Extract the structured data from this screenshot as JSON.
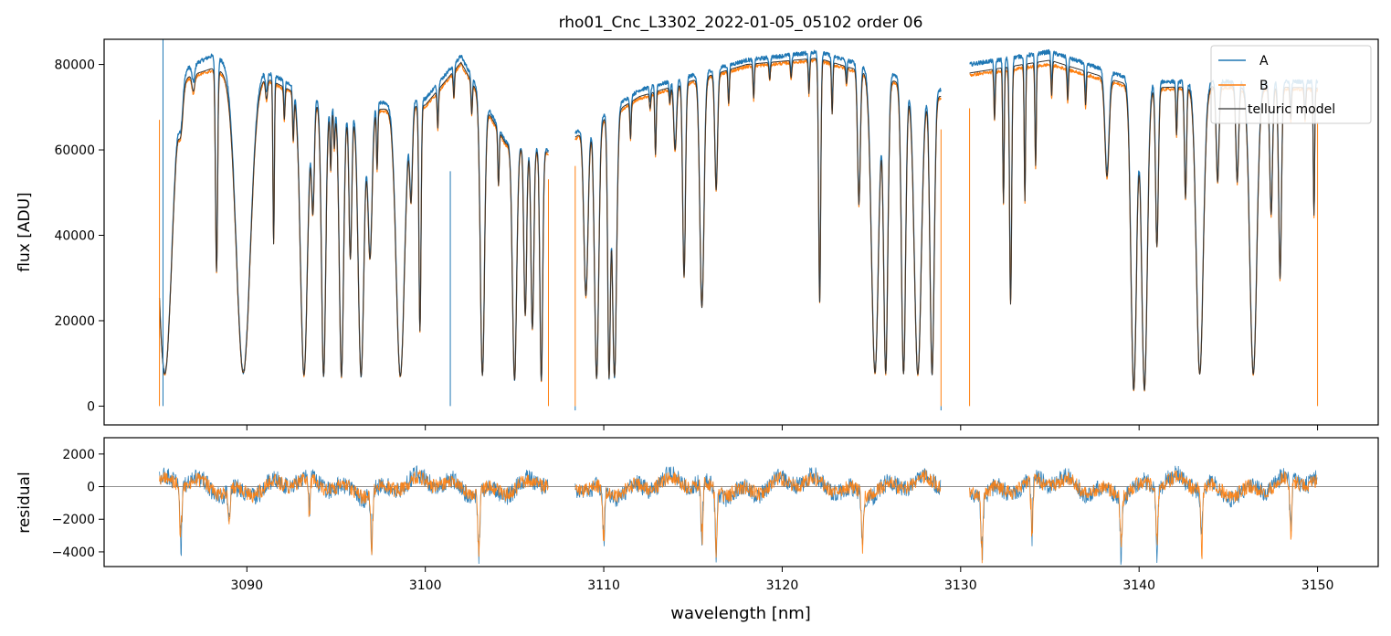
{
  "colors": {
    "A": "#1f77b4",
    "B": "#ff7f0e",
    "model": "#333333",
    "zero_line": "#808080"
  },
  "chart_data": [
    {
      "type": "line",
      "title": "rho01_Cnc_L3302_2022-01-05_05102  order 06",
      "xlabel": "",
      "ylabel": "flux [ADU]",
      "xlim": [
        3082,
        3153.4
      ],
      "ylim": [
        -4400,
        85900
      ],
      "xticks": [
        3090,
        3100,
        3110,
        3120,
        3130,
        3140,
        3150
      ],
      "yticks": [
        0,
        20000,
        40000,
        60000,
        80000
      ],
      "ytick_labels": [
        "0",
        "20000",
        "40000",
        "60000",
        "80000"
      ],
      "grid": false,
      "legend_position": "top-right",
      "legend": [
        "A",
        "B",
        "telluric model"
      ],
      "segments": [
        [
          3085.1,
          3106.9
        ],
        [
          3108.4,
          3128.9
        ],
        [
          3130.5,
          3150.0
        ]
      ],
      "continuum": {
        "A": [
          [
            3085.1,
            76000
          ],
          [
            3088,
            82000
          ],
          [
            3091,
            78500
          ],
          [
            3095,
            70000
          ],
          [
            3100,
            72000
          ],
          [
            3102,
            82000
          ],
          [
            3104.5,
            62000
          ],
          [
            3106.9,
            60000
          ],
          [
            3108.4,
            64000
          ],
          [
            3112,
            74000
          ],
          [
            3118,
            81000
          ],
          [
            3122,
            83000
          ],
          [
            3126,
            78000
          ],
          [
            3128.9,
            74000
          ],
          [
            3130.5,
            80000
          ],
          [
            3135,
            83000
          ],
          [
            3140,
            76000
          ],
          [
            3145,
            76000
          ],
          [
            3150,
            76000
          ]
        ],
        "B": [
          [
            3085.1,
            74500
          ],
          [
            3088,
            78500
          ],
          [
            3091,
            76500
          ],
          [
            3095,
            68000
          ],
          [
            3100,
            70000
          ],
          [
            3102,
            80000
          ],
          [
            3104.5,
            61000
          ],
          [
            3106.9,
            59000
          ],
          [
            3108.4,
            62500
          ],
          [
            3112,
            72000
          ],
          [
            3118,
            79500
          ],
          [
            3122,
            81000
          ],
          [
            3126,
            76000
          ],
          [
            3128.9,
            72000
          ],
          [
            3130.5,
            77500
          ],
          [
            3135,
            80000
          ],
          [
            3140,
            74000
          ],
          [
            3145,
            74500
          ],
          [
            3150,
            74000
          ]
        ],
        "model": [
          [
            3085.1,
            75000
          ],
          [
            3088,
            79000
          ],
          [
            3091,
            77000
          ],
          [
            3095,
            68500
          ],
          [
            3100,
            70500
          ],
          [
            3102,
            80500
          ],
          [
            3104.5,
            61500
          ],
          [
            3106.9,
            59500
          ],
          [
            3108.4,
            63000
          ],
          [
            3112,
            72500
          ],
          [
            3118,
            80000
          ],
          [
            3122,
            81500
          ],
          [
            3126,
            76500
          ],
          [
            3128.9,
            72500
          ],
          [
            3130.5,
            78000
          ],
          [
            3135,
            81000
          ],
          [
            3140,
            74500
          ],
          [
            3145,
            75000
          ],
          [
            3150,
            74500
          ]
        ]
      },
      "absorption_lines": [
        [
          3085.4,
          0.9,
          1.0
        ],
        [
          3086.3,
          0.12,
          0.3
        ],
        [
          3087.0,
          0.05,
          0.2
        ],
        [
          3088.3,
          0.6,
          0.15
        ],
        [
          3089.8,
          0.9,
          1.0
        ],
        [
          3091.1,
          0.06,
          0.15
        ],
        [
          3091.5,
          0.5,
          0.1
        ],
        [
          3092.1,
          0.1,
          0.1
        ],
        [
          3092.6,
          0.15,
          0.1
        ],
        [
          3093.2,
          0.9,
          0.5
        ],
        [
          3093.7,
          0.35,
          0.2
        ],
        [
          3094.3,
          0.9,
          0.3
        ],
        [
          3094.7,
          0.2,
          0.1
        ],
        [
          3094.9,
          0.12,
          0.1
        ],
        [
          3095.3,
          0.9,
          0.3
        ],
        [
          3095.8,
          0.5,
          0.2
        ],
        [
          3096.4,
          0.9,
          0.4
        ],
        [
          3096.9,
          0.5,
          0.3
        ],
        [
          3097.3,
          0.2,
          0.1
        ],
        [
          3098.6,
          0.9,
          0.6
        ],
        [
          3099.2,
          0.3,
          0.2
        ],
        [
          3099.7,
          0.75,
          0.15
        ],
        [
          3100.7,
          0.12,
          0.1
        ],
        [
          3101.6,
          0.08,
          0.1
        ],
        [
          3102.6,
          0.1,
          0.1
        ],
        [
          3103.2,
          0.9,
          0.3
        ],
        [
          3104.1,
          0.2,
          0.1
        ],
        [
          3105.0,
          0.9,
          0.3
        ],
        [
          3105.6,
          0.65,
          0.2
        ],
        [
          3106.0,
          0.7,
          0.2
        ],
        [
          3106.5,
          0.9,
          0.2
        ],
        [
          3109.0,
          0.6,
          0.3
        ],
        [
          3109.6,
          0.9,
          0.3
        ],
        [
          3110.3,
          0.9,
          0.2
        ],
        [
          3110.6,
          0.9,
          0.3
        ],
        [
          3111.5,
          0.12,
          0.1
        ],
        [
          3112.6,
          0.05,
          0.1
        ],
        [
          3112.9,
          0.2,
          0.1
        ],
        [
          3113.7,
          0.05,
          0.1
        ],
        [
          3114.0,
          0.2,
          0.2
        ],
        [
          3114.5,
          0.6,
          0.2
        ],
        [
          3115.5,
          0.7,
          0.3
        ],
        [
          3116.3,
          0.35,
          0.2
        ],
        [
          3117.0,
          0.1,
          0.1
        ],
        [
          3118.4,
          0.1,
          0.1
        ],
        [
          3119.3,
          0.05,
          0.1
        ],
        [
          3120.5,
          0.05,
          0.1
        ],
        [
          3121.5,
          0.1,
          0.1
        ],
        [
          3122.1,
          0.7,
          0.15
        ],
        [
          3122.8,
          0.15,
          0.1
        ],
        [
          3123.6,
          0.05,
          0.1
        ],
        [
          3124.3,
          0.4,
          0.2
        ],
        [
          3125.2,
          0.9,
          0.5
        ],
        [
          3125.8,
          0.9,
          0.3
        ],
        [
          3126.8,
          0.9,
          0.3
        ],
        [
          3127.6,
          0.9,
          0.5
        ],
        [
          3128.4,
          0.9,
          0.3
        ],
        [
          3131.9,
          0.15,
          0.1
        ],
        [
          3132.4,
          0.4,
          0.1
        ],
        [
          3132.8,
          0.7,
          0.15
        ],
        [
          3133.6,
          0.4,
          0.1
        ],
        [
          3134.2,
          0.3,
          0.1
        ],
        [
          3135.1,
          0.1,
          0.1
        ],
        [
          3136.0,
          0.1,
          0.1
        ],
        [
          3137.0,
          0.1,
          0.1
        ],
        [
          3138.2,
          0.3,
          0.3
        ],
        [
          3139.7,
          0.95,
          0.4
        ],
        [
          3140.3,
          0.95,
          0.4
        ],
        [
          3141.0,
          0.5,
          0.2
        ],
        [
          3142.1,
          0.15,
          0.1
        ],
        [
          3142.6,
          0.35,
          0.15
        ],
        [
          3143.4,
          0.9,
          0.5
        ],
        [
          3144.4,
          0.3,
          0.2
        ],
        [
          3145.5,
          0.3,
          0.2
        ],
        [
          3146.4,
          0.9,
          0.5
        ],
        [
          3147.4,
          0.4,
          0.2
        ],
        [
          3147.9,
          0.6,
          0.2
        ],
        [
          3148.5,
          0.1,
          0.1
        ],
        [
          3149.3,
          0.1,
          0.1
        ],
        [
          3149.8,
          0.4,
          0.1
        ]
      ],
      "spikes": [
        [
          3085.3,
          90000
        ],
        [
          3101.4,
          55000
        ],
        [
          3108.4,
          -1000
        ],
        [
          3128.9,
          -1000
        ]
      ]
    },
    {
      "type": "line",
      "title": "",
      "xlabel": "wavelength [nm]",
      "ylabel": "residual",
      "xlim": [
        3082,
        3153.4
      ],
      "ylim": [
        -4900,
        3000
      ],
      "xticks": [
        3090,
        3100,
        3110,
        3120,
        3130,
        3140,
        3150
      ],
      "xtick_labels": [
        "3090",
        "3100",
        "3110",
        "3120",
        "3130",
        "3140",
        "3150"
      ],
      "yticks": [
        -4000,
        -2000,
        0,
        2000
      ],
      "ytick_labels": [
        "−4000",
        "−2000",
        "0",
        "2000"
      ],
      "zero_line": 0,
      "grid": false,
      "noise_amplitude": {
        "A": 700,
        "B": 550
      },
      "residual_dips": [
        [
          3086.3,
          -4500
        ],
        [
          3089.0,
          -2500
        ],
        [
          3093.5,
          -3000
        ],
        [
          3097.0,
          -4500
        ],
        [
          3103.0,
          -4500
        ],
        [
          3110.0,
          -4000
        ],
        [
          3115.5,
          -4500
        ],
        [
          3116.3,
          -4500
        ],
        [
          3124.5,
          -4500
        ],
        [
          3131.2,
          -4500
        ],
        [
          3134.0,
          -4500
        ],
        [
          3139.0,
          -4500
        ],
        [
          3141.0,
          -4500
        ],
        [
          3143.5,
          -4500
        ],
        [
          3148.5,
          -4500
        ]
      ]
    }
  ]
}
